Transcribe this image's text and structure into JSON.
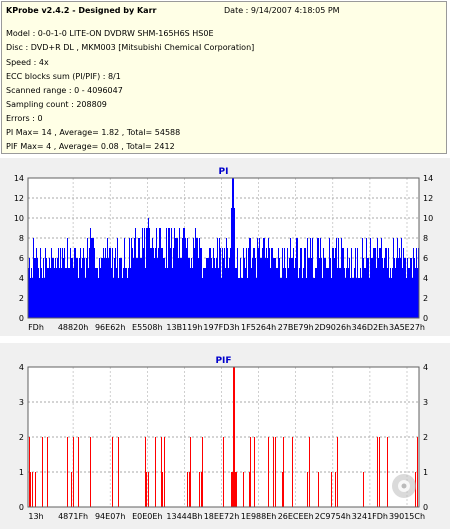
{
  "header": {
    "title": "KProbe v2.4.2 - Designed by Karr",
    "date": "Date : 9/14/2007 4:18:05 PM"
  },
  "info_lines": [
    "Model : 0-0-1-0 LITE-ON DVDRW SHM-165H6S HS0E",
    "Disc : DVD+R DL , MKM003 [Mitsubishi Chemical Corporation]",
    "Speed : 4x",
    "ECC blocks sum (PI/PIF) : 8/1",
    "Scanned range : 0 - 4096047",
    "Sampling count : 208809",
    "Errors : 0",
    "PI Max= 14 , Average= 1.82 , Total= 54588",
    "PIF Max= 4 , Average= 0.08 , Total= 2412"
  ],
  "colors": {
    "pi": "#0000ff",
    "pif": "#ff0000",
    "chart_title": "#0000cc"
  },
  "chart_data": [
    {
      "type": "bar",
      "title": "PI",
      "ylim": [
        0,
        14
      ],
      "yticks": [
        0,
        2,
        4,
        6,
        8,
        10,
        12,
        14
      ],
      "xtick_labels": [
        "FDh",
        "48820h",
        "96E62h",
        "E5508h",
        "13B119h",
        "197FD3h",
        "1F5264h",
        "27BE79h",
        "2D9026h",
        "346D2Eh",
        "3A5E27h"
      ],
      "max_value": 14,
      "grid": true
    },
    {
      "type": "bar",
      "title": "PIF",
      "ylim": [
        0,
        4
      ],
      "yticks": [
        0,
        1,
        2,
        3,
        4
      ],
      "xtick_labels": [
        "13h",
        "4871Fh",
        "94E07h",
        "E0E0Eh",
        "13444Bh",
        "18EE72h",
        "1E988Eh",
        "26ECEEh",
        "2C9754h",
        "3241FDh",
        "39015Ch"
      ],
      "max_value": 4,
      "grid": true
    }
  ]
}
